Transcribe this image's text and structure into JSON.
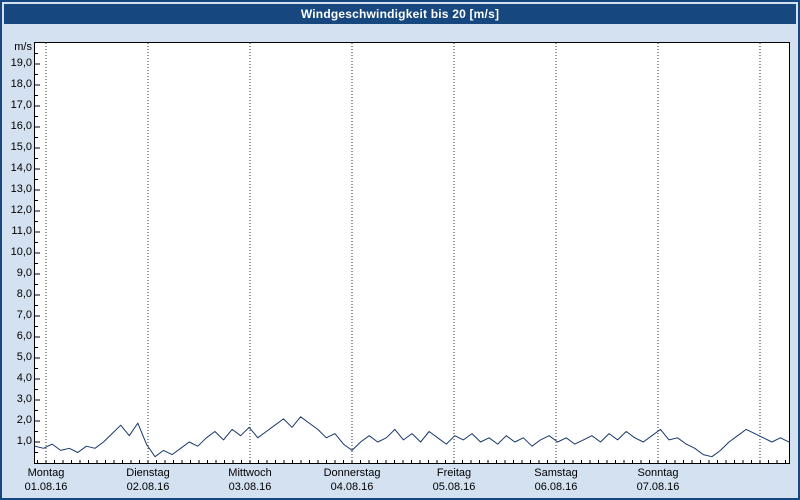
{
  "title": "Windgeschwindigkeit bis 20 [m/s]",
  "colors": {
    "background": "#d3e1f1",
    "titlebar": "#16477e",
    "line": "#17386d",
    "grid": "#333333",
    "axis": "#000000"
  },
  "y_axis": {
    "unit": "m/s",
    "tick_labels": [
      "1,0",
      "2,0",
      "3,0",
      "4,0",
      "5,0",
      "6,0",
      "7,0",
      "8,0",
      "9,0",
      "10,0",
      "11,0",
      "12,0",
      "13,0",
      "14,0",
      "15,0",
      "16,0",
      "17,0",
      "18,0",
      "19,0"
    ]
  },
  "x_axis": {
    "days": [
      {
        "name": "Montag",
        "date": "01.08.16"
      },
      {
        "name": "Dienstag",
        "date": "02.08.16"
      },
      {
        "name": "Mittwoch",
        "date": "03.08.16"
      },
      {
        "name": "Donnerstag",
        "date": "04.08.16"
      },
      {
        "name": "Freitag",
        "date": "05.08.16"
      },
      {
        "name": "Samstag",
        "date": "06.08.16"
      },
      {
        "name": "Sonntag",
        "date": "07.08.16"
      }
    ]
  },
  "chart_data": {
    "type": "line",
    "title": "Windgeschwindigkeit bis 20 [m/s]",
    "xlabel": "",
    "ylabel": "m/s",
    "ylim": [
      0,
      20
    ],
    "y_major_step": 1,
    "grid": "vertical dotted lines at each day boundary",
    "legend": "none",
    "x_categories": [
      "Montag 01.08.16",
      "Dienstag 02.08.16",
      "Mittwoch 03.08.16",
      "Donnerstag 04.08.16",
      "Freitag 05.08.16",
      "Samstag 06.08.16",
      "Sonntag 07.08.16"
    ],
    "sample_interval_hours": 2,
    "series": [
      {
        "name": "Windgeschwindigkeit [m/s]",
        "values": [
          0.8,
          0.7,
          0.9,
          0.6,
          0.7,
          0.5,
          0.8,
          0.7,
          1.0,
          1.4,
          1.8,
          1.3,
          1.9,
          0.9,
          0.3,
          0.6,
          0.4,
          0.7,
          1.0,
          0.8,
          1.2,
          1.5,
          1.1,
          1.6,
          1.3,
          1.7,
          1.2,
          1.5,
          1.8,
          2.1,
          1.7,
          2.2,
          1.9,
          1.6,
          1.2,
          1.4,
          0.9,
          0.6,
          1.0,
          1.3,
          1.0,
          1.2,
          1.6,
          1.1,
          1.4,
          1.0,
          1.5,
          1.2,
          0.9,
          1.3,
          1.1,
          1.4,
          1.0,
          1.2,
          0.9,
          1.3,
          1.0,
          1.2,
          0.8,
          1.1,
          1.3,
          1.0,
          1.2,
          0.9,
          1.1,
          1.3,
          1.0,
          1.4,
          1.1,
          1.5,
          1.2,
          1.0,
          1.3,
          1.6,
          1.1,
          1.2,
          0.9,
          0.7,
          0.4,
          0.3,
          0.6,
          1.0,
          1.3,
          1.6,
          1.4,
          1.2,
          1.0,
          1.2,
          1.0
        ]
      }
    ]
  }
}
